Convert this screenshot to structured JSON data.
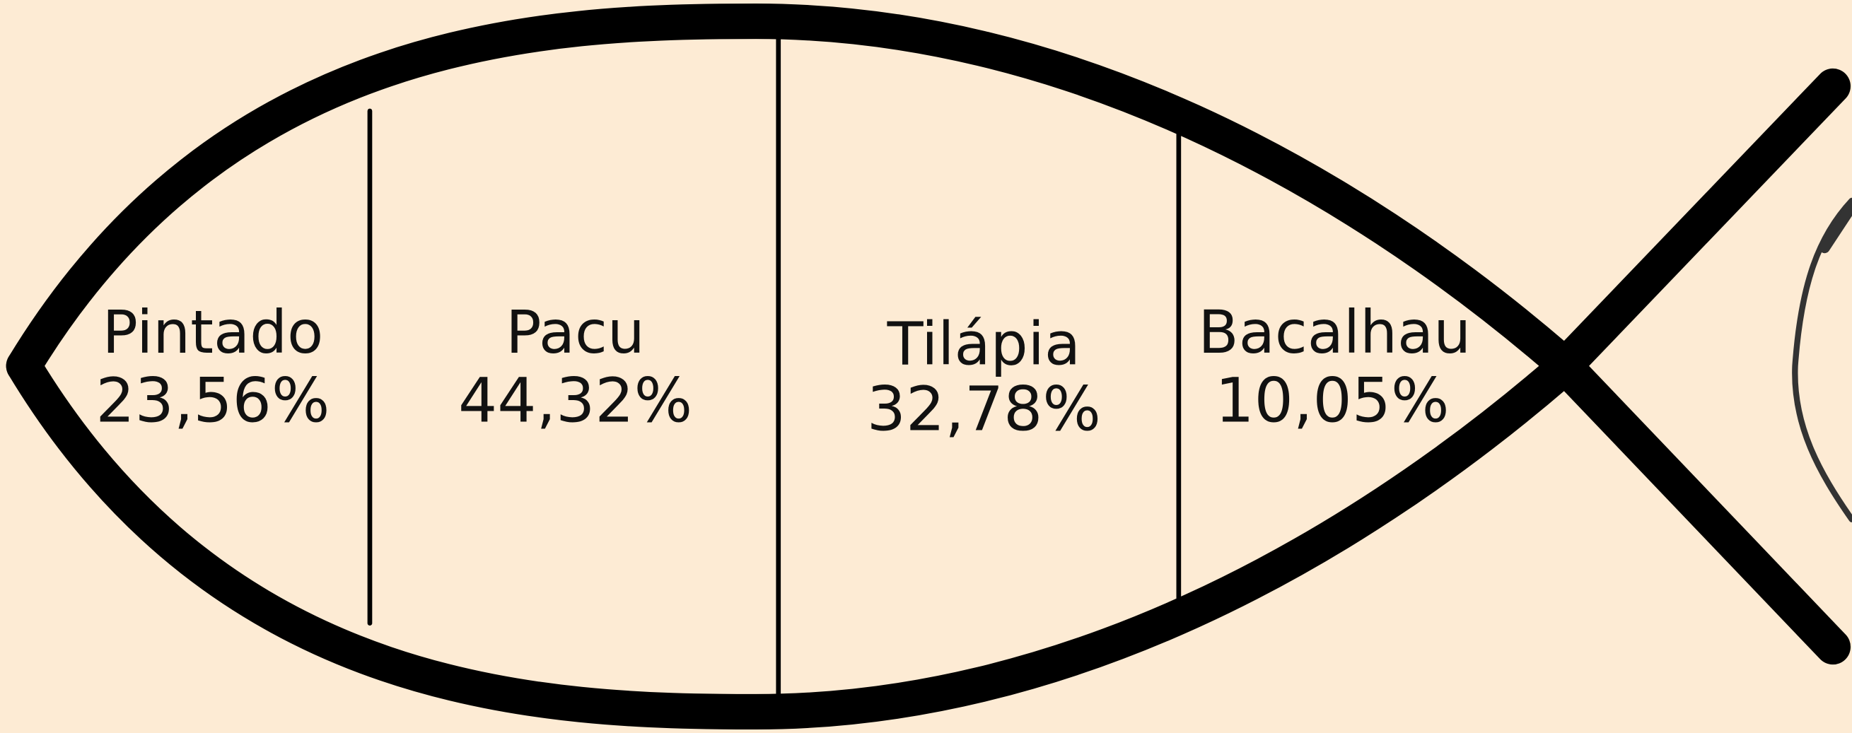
{
  "sections": [
    {
      "name": "Pintado",
      "value": "23,56%"
    },
    {
      "name": "Pacu",
      "value": "44,32%"
    },
    {
      "name": "Tilápia",
      "value": "32,78%"
    },
    {
      "name": "Bacalhau",
      "value": "10,05%"
    }
  ]
}
